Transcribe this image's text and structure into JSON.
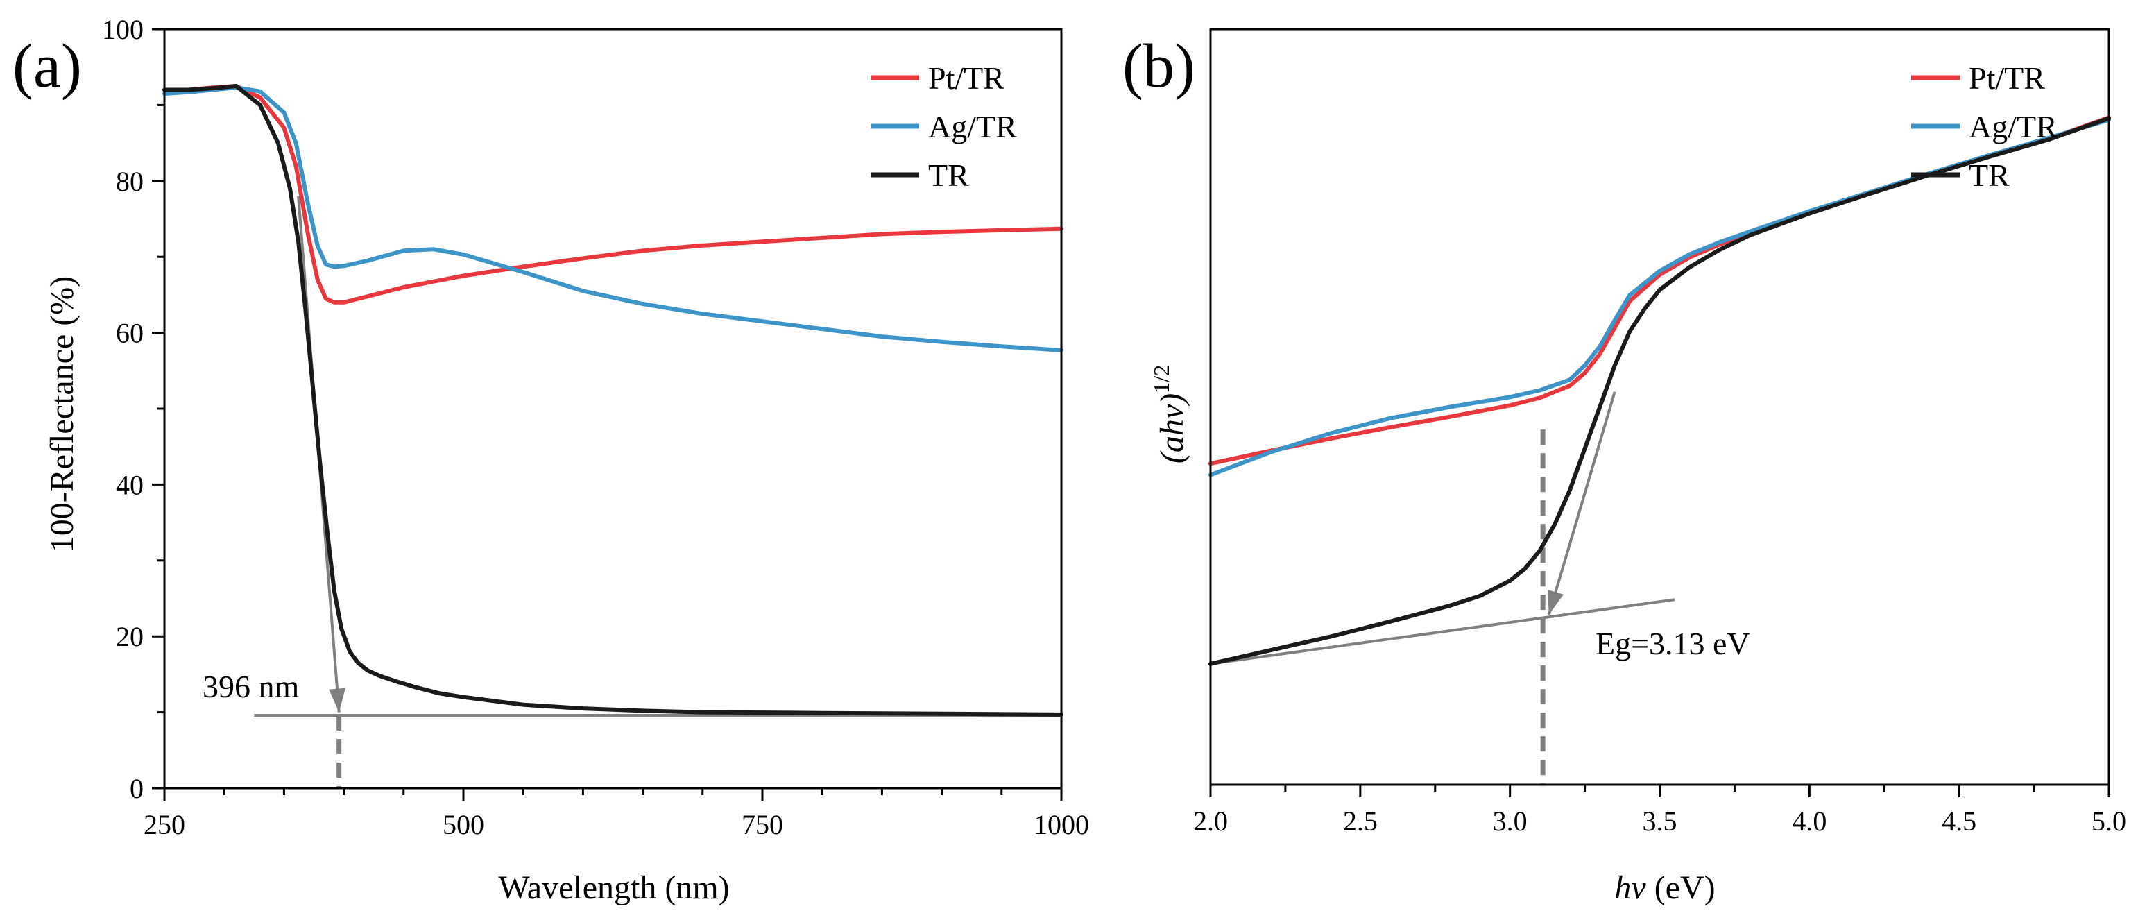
{
  "colors": {
    "pt": "#e8383d",
    "ag": "#3d94c8",
    "tr": "#1a1a1a",
    "guide": "#808080"
  },
  "chart_data": [
    {
      "type": "line",
      "panel_label": "(a)",
      "xlabel": "Wavelength (nm)",
      "ylabel": "100-Reflectance (%)",
      "xlim": [
        250,
        1000
      ],
      "ylim": [
        0,
        100
      ],
      "xticks": [
        250,
        500,
        750,
        1000
      ],
      "yticks": [
        0,
        20,
        40,
        60,
        80,
        100
      ],
      "xtick_labels": [
        "250",
        "500",
        "750",
        "1000"
      ],
      "ytick_labels": [
        "0",
        "20",
        "40",
        "60",
        "80",
        "100"
      ],
      "legend_position": "top-right",
      "series": [
        {
          "name": "Pt/TR",
          "color_key": "pt",
          "x": [
            250,
            270,
            290,
            310,
            330,
            350,
            360,
            370,
            378,
            385,
            392,
            400,
            420,
            450,
            500,
            550,
            600,
            650,
            700,
            750,
            800,
            850,
            900,
            950,
            1000
          ],
          "y": [
            92,
            92,
            92.3,
            92.5,
            91,
            87,
            82,
            73,
            67,
            64.5,
            64,
            64,
            64.8,
            66,
            67.5,
            68.7,
            69.8,
            70.8,
            71.5,
            72,
            72.5,
            73,
            73.3,
            73.5,
            73.7
          ]
        },
        {
          "name": "Ag/TR",
          "color_key": "ag",
          "x": [
            250,
            270,
            290,
            310,
            330,
            350,
            360,
            370,
            378,
            385,
            392,
            400,
            420,
            450,
            475,
            500,
            550,
            600,
            650,
            700,
            750,
            800,
            850,
            900,
            950,
            1000
          ],
          "y": [
            91.5,
            91.7,
            92,
            92.3,
            91.8,
            89,
            85,
            77,
            71.5,
            69,
            68.7,
            68.8,
            69.5,
            70.8,
            71,
            70.3,
            68,
            65.5,
            63.8,
            62.5,
            61.5,
            60.5,
            59.5,
            58.8,
            58.2,
            57.7
          ]
        },
        {
          "name": "TR",
          "color_key": "tr",
          "x": [
            250,
            270,
            290,
            310,
            330,
            345,
            355,
            362,
            368,
            374,
            380,
            386,
            392,
            398,
            405,
            412,
            420,
            430,
            445,
            460,
            480,
            500,
            550,
            600,
            650,
            700,
            800,
            900,
            1000
          ],
          "y": [
            92,
            92,
            92.2,
            92.5,
            90,
            85,
            79,
            72,
            63,
            53,
            43,
            34,
            26,
            21,
            18,
            16.5,
            15.5,
            14.8,
            14,
            13.3,
            12.5,
            12,
            11,
            10.5,
            10.2,
            10,
            9.9,
            9.8,
            9.7
          ]
        }
      ],
      "annotations": [
        {
          "text": "396 nm",
          "x": 396
        }
      ],
      "guides": {
        "tangent": [
          [
            362,
            78
          ],
          [
            396,
            10
          ]
        ],
        "baseline": [
          [
            325,
            9.6
          ],
          [
            1000,
            9.6
          ]
        ],
        "drop": [
          [
            396,
            9.6
          ],
          [
            396,
            0
          ]
        ]
      }
    },
    {
      "type": "line",
      "panel_label": "(b)",
      "xlabel": "hv (eV)",
      "xlabel_italic": "hv",
      "xlabel_rest": " (eV)",
      "ylabel_italic": "(ahv)",
      "ylabel_sup": "1/2",
      "xlim": [
        2.0,
        5.0
      ],
      "ylim": [
        0,
        100
      ],
      "xticks": [
        2.0,
        2.5,
        3.0,
        3.5,
        4.0,
        4.5,
        5.0
      ],
      "xtick_labels": [
        "2.0",
        "2.5",
        "3.0",
        "3.5",
        "4.0",
        "4.5",
        "5.0"
      ],
      "legend_position": "top-right",
      "series": [
        {
          "name": "Pt/TR",
          "color_key": "pt",
          "x": [
            2.0,
            2.2,
            2.4,
            2.6,
            2.8,
            3.0,
            3.1,
            3.2,
            3.25,
            3.3,
            3.35,
            3.4,
            3.5,
            3.6,
            3.7,
            3.8,
            4.0,
            4.2,
            4.4,
            4.6,
            4.8,
            5.0
          ],
          "y": [
            42.5,
            44.2,
            45.8,
            47.3,
            48.7,
            50.2,
            51.2,
            52.8,
            54.5,
            57,
            60.5,
            64,
            67.5,
            69.8,
            71.5,
            73,
            75.8,
            78.3,
            80.8,
            83.2,
            85.5,
            88.3
          ]
        },
        {
          "name": "Ag/TR",
          "color_key": "ag",
          "x": [
            2.0,
            2.2,
            2.4,
            2.6,
            2.8,
            3.0,
            3.1,
            3.2,
            3.25,
            3.3,
            3.35,
            3.4,
            3.5,
            3.6,
            3.7,
            3.8,
            4.0,
            4.2,
            4.4,
            4.6,
            4.8,
            5.0
          ],
          "y": [
            41,
            44,
            46.5,
            48.5,
            50,
            51.3,
            52.2,
            53.6,
            55.5,
            58,
            61.5,
            64.8,
            68,
            70.2,
            71.8,
            73.2,
            75.9,
            78.4,
            80.9,
            83.3,
            85.6,
            88
          ]
        },
        {
          "name": "TR",
          "color_key": "tr",
          "x": [
            2.0,
            2.2,
            2.4,
            2.6,
            2.8,
            2.9,
            3.0,
            3.05,
            3.1,
            3.15,
            3.2,
            3.25,
            3.3,
            3.35,
            3.4,
            3.45,
            3.5,
            3.6,
            3.7,
            3.8,
            4.0,
            4.2,
            4.4,
            4.6,
            4.8,
            5.0
          ],
          "y": [
            16,
            17.8,
            19.6,
            21.6,
            23.7,
            25,
            27,
            28.6,
            31,
            34.5,
            39,
            44.5,
            50,
            55.5,
            60,
            63,
            65.5,
            68.5,
            70.8,
            72.7,
            75.6,
            78.2,
            80.7,
            83.1,
            85.4,
            88.2
          ]
        }
      ],
      "annotations": [
        {
          "text": "Eg=3.13 eV",
          "x": 3.13
        }
      ],
      "guides": {
        "tangent": [
          [
            3.35,
            52
          ],
          [
            3.13,
            22.5
          ]
        ],
        "baseline": [
          [
            2.0,
            16
          ],
          [
            3.55,
            24.5
          ]
        ],
        "drop": [
          [
            3.11,
            47
          ],
          [
            3.11,
            0
          ]
        ]
      }
    }
  ]
}
